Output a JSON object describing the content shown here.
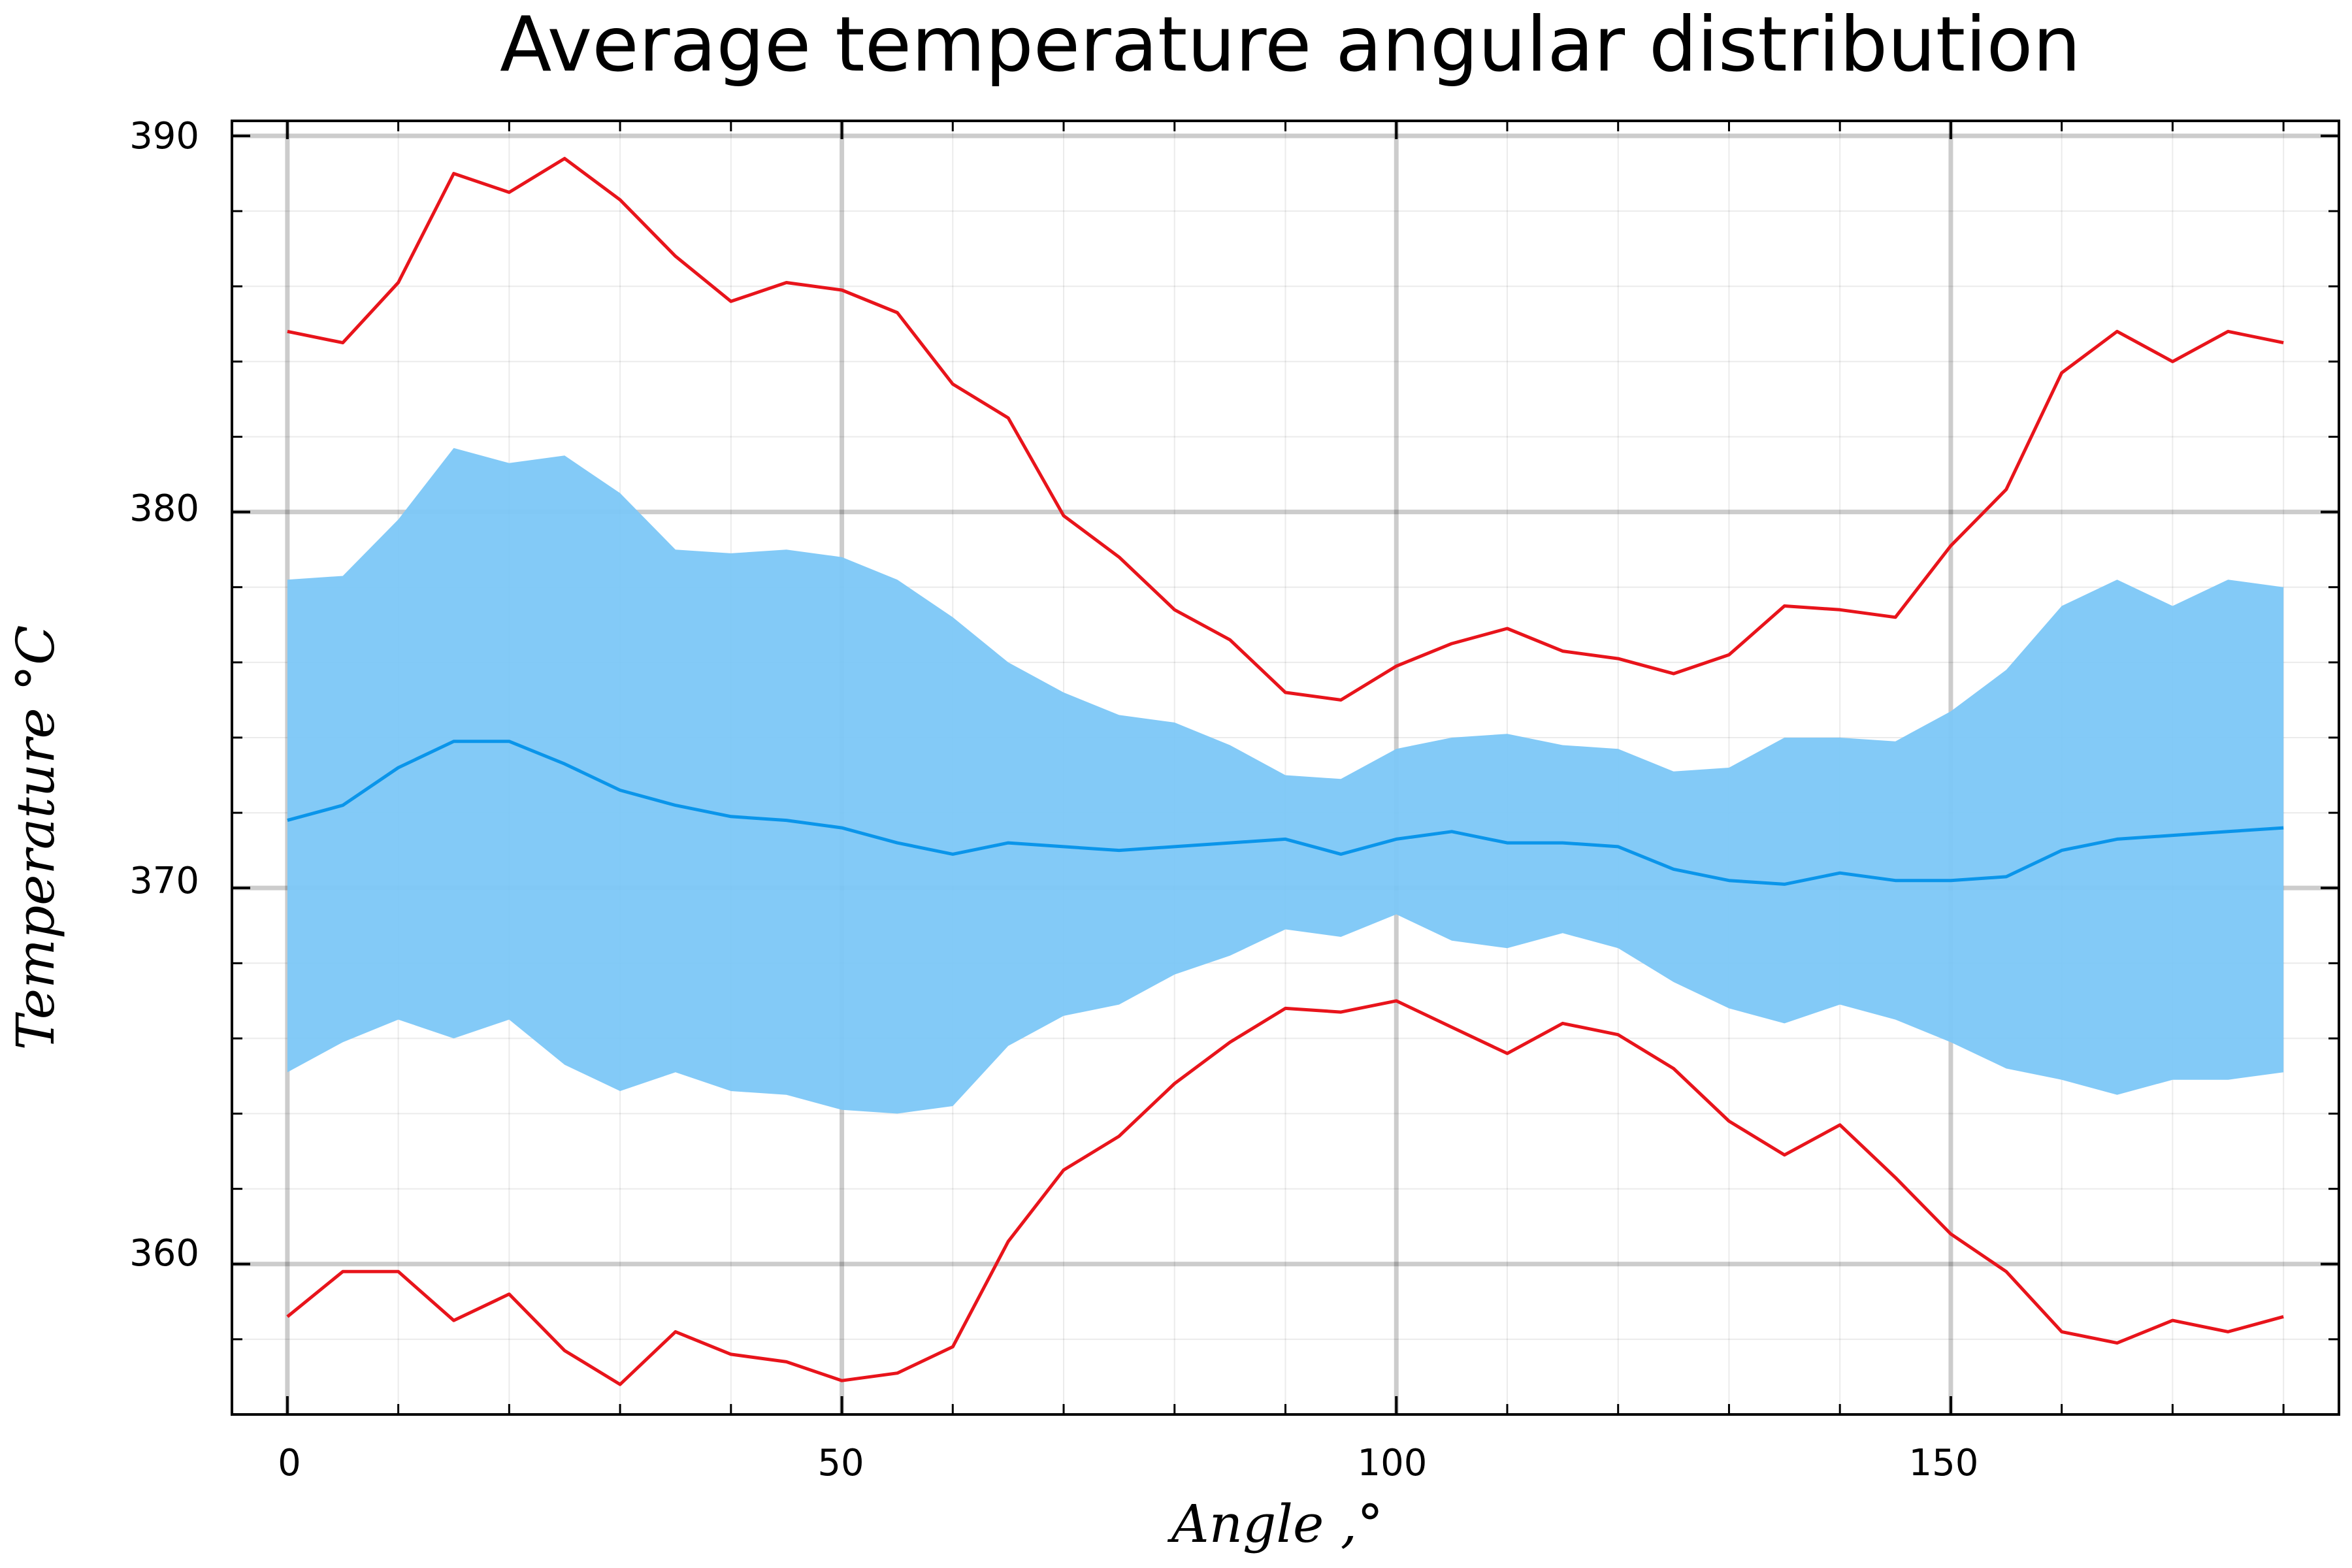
{
  "chart_data": {
    "type": "line",
    "title": "Average temperature angular distribution",
    "xlabel": "Angle ,°",
    "ylabel": "Temperature °C",
    "xlim": [
      -5,
      185
    ],
    "ylim": [
      356,
      390.4
    ],
    "xticks": [
      0,
      50,
      100,
      150
    ],
    "xtick_labels": [
      "0",
      "50",
      "100",
      "150"
    ],
    "yticks": [
      360,
      370,
      380,
      390
    ],
    "ytick_labels": [
      "360",
      "370",
      "380",
      "390"
    ],
    "grid": true,
    "legend": "none",
    "x": [
      0,
      5,
      10,
      15,
      20,
      25,
      30,
      35,
      40,
      45,
      50,
      55,
      60,
      65,
      70,
      75,
      80,
      85,
      90,
      95,
      100,
      105,
      110,
      115,
      120,
      125,
      130,
      135,
      140,
      145,
      150,
      155,
      160,
      165,
      170,
      175,
      180
    ],
    "series": [
      {
        "name": "mean",
        "color": "#0a95ea",
        "values": [
          371.8,
          372.2,
          373.2,
          373.9,
          373.9,
          373.3,
          372.6,
          372.2,
          371.9,
          371.8,
          371.6,
          371.2,
          370.9,
          371.2,
          371.1,
          371.0,
          371.1,
          371.2,
          371.3,
          370.9,
          371.3,
          371.5,
          371.2,
          371.2,
          371.1,
          370.5,
          370.2,
          370.1,
          370.4,
          370.2,
          370.2,
          370.3,
          371.0,
          371.3,
          371.4,
          371.5,
          371.6
        ]
      },
      {
        "name": "std band upper",
        "color": "#7cc7f7",
        "values": [
          378.2,
          378.3,
          379.8,
          381.7,
          381.3,
          381.5,
          380.5,
          379.0,
          378.9,
          379.0,
          378.8,
          378.2,
          377.2,
          376.0,
          375.2,
          374.6,
          374.4,
          373.8,
          373.0,
          372.9,
          373.7,
          374.0,
          374.1,
          373.8,
          373.7,
          373.1,
          373.2,
          374.0,
          374.0,
          373.9,
          374.7,
          375.8,
          377.5,
          378.2,
          377.5,
          378.2,
          378.0
        ]
      },
      {
        "name": "std band lower",
        "color": "#7cc7f7",
        "values": [
          365.1,
          365.9,
          366.5,
          366.0,
          366.5,
          365.3,
          364.6,
          365.1,
          364.6,
          364.5,
          364.1,
          364.0,
          364.2,
          365.8,
          366.6,
          366.9,
          367.7,
          368.2,
          368.9,
          368.7,
          369.3,
          368.6,
          368.4,
          368.8,
          368.4,
          367.5,
          366.8,
          366.4,
          366.9,
          366.5,
          365.9,
          365.2,
          364.9,
          364.5,
          364.9,
          364.9,
          365.1
        ]
      },
      {
        "name": "max",
        "color": "#e8141b",
        "values": [
          384.8,
          384.5,
          386.1,
          389.0,
          388.5,
          389.4,
          388.3,
          386.8,
          385.6,
          386.1,
          385.9,
          385.3,
          383.4,
          382.5,
          379.9,
          378.8,
          377.4,
          376.6,
          375.2,
          375.0,
          375.9,
          376.5,
          376.9,
          376.3,
          376.1,
          375.7,
          376.2,
          377.5,
          377.4,
          377.2,
          379.1,
          380.6,
          383.7,
          384.8,
          384.0,
          384.8,
          384.5
        ]
      },
      {
        "name": "min",
        "color": "#e8141b",
        "values": [
          358.6,
          359.8,
          359.8,
          358.5,
          359.2,
          357.7,
          356.8,
          358.2,
          357.6,
          357.4,
          356.9,
          357.1,
          357.8,
          360.6,
          362.5,
          363.4,
          364.8,
          365.9,
          366.8,
          366.7,
          367.0,
          366.3,
          365.6,
          366.4,
          366.1,
          365.2,
          363.8,
          362.9,
          363.7,
          362.3,
          360.8,
          359.8,
          358.2,
          357.9,
          358.5,
          358.2,
          358.6
        ]
      }
    ]
  }
}
